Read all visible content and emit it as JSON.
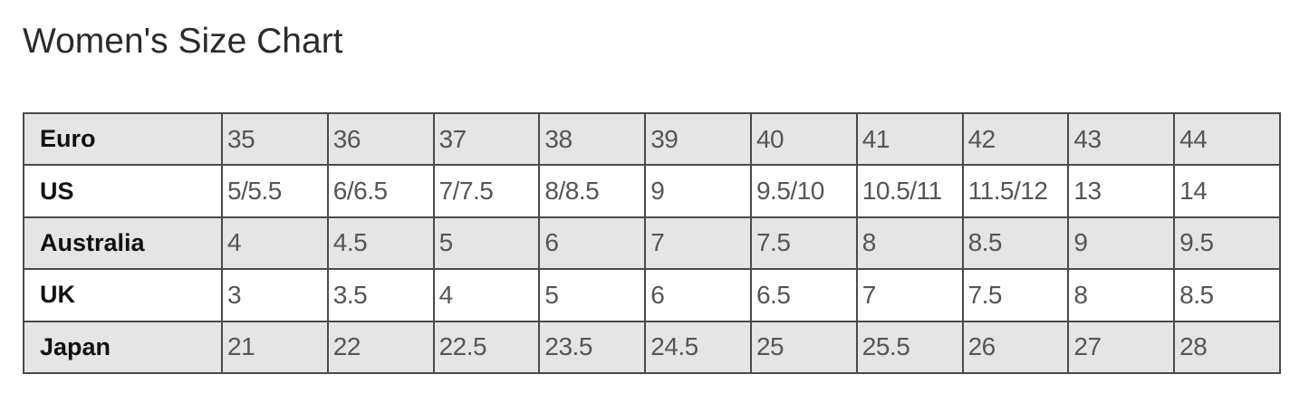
{
  "title": "Women's Size Chart",
  "rows": [
    {
      "label": "Euro",
      "values": [
        "35",
        "36",
        "37",
        "38",
        "39",
        "40",
        "41",
        "42",
        "43",
        "44"
      ]
    },
    {
      "label": "US",
      "values": [
        "5/5.5",
        "6/6.5",
        "7/7.5",
        "8/8.5",
        "9",
        "9.5/10",
        "10.5/11",
        "11.5/12",
        "13",
        "14"
      ]
    },
    {
      "label": "Australia",
      "values": [
        "4",
        "4.5",
        "5",
        "6",
        "7",
        "7.5",
        "8",
        "8.5",
        "9",
        "9.5"
      ]
    },
    {
      "label": "UK",
      "values": [
        "3",
        "3.5",
        "4",
        "5",
        "6",
        "6.5",
        "7",
        "7.5",
        "8",
        "8.5"
      ]
    },
    {
      "label": "Japan",
      "values": [
        "21",
        "22",
        "22.5",
        "23.5",
        "24.5",
        "25",
        "25.5",
        "26",
        "27",
        "28"
      ]
    }
  ],
  "colors": {
    "shaded_row": "#e5e5e5",
    "border": "#4a4a4a"
  }
}
